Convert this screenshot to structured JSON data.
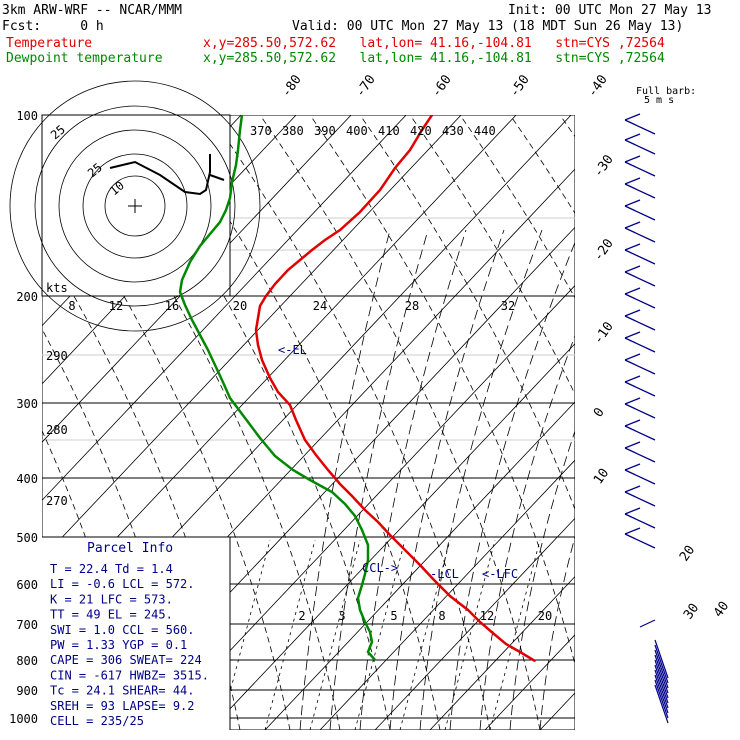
{
  "header": {
    "model": "3km ARW-WRF -- NCAR/MMM",
    "init": "Init: 00 UTC Mon 27 May 13",
    "fcst": "Fcst:     0 h",
    "valid": "Valid: 00 UTC Mon 27 May 13 (18 MDT Sun 26 May 13)"
  },
  "legend": [
    {
      "name": "Temperature",
      "loc": "x,y=285.50,572.62   lat,lon= 41.16,-104.81   stn=CYS ,72564",
      "color": "#e00000"
    },
    {
      "name": "Dewpoint temperature",
      "loc": "x,y=285.50,572.62   lat,lon= 41.16,-104.81   stn=CYS ,72564",
      "color": "#008800"
    }
  ],
  "barb_key": {
    "title": "Full barb:",
    "value": "5 m s"
  },
  "chart_data": {
    "type": "line",
    "pressure_levels": [
      "100",
      "200",
      "300",
      "400",
      "500",
      "600",
      "700",
      "800",
      "900",
      "1000"
    ],
    "skew_temp_labels": [
      "-80",
      "-70",
      "-60",
      "-50",
      "-40",
      "-30",
      "-20",
      "-10",
      "0",
      "10",
      "20",
      "30",
      "40"
    ],
    "theta_labels": [
      "370",
      "380",
      "390",
      "400",
      "410",
      "420",
      "430",
      "440"
    ],
    "mixing_ratio_labels": [
      "2",
      "3",
      "5",
      "8",
      "12",
      "20"
    ],
    "hodograph": {
      "speed_labels": [
        "8",
        "12",
        "16",
        "20",
        "24",
        "28",
        "32"
      ],
      "ring_labels": [
        "25",
        "10"
      ],
      "kts": "kts",
      "ring_top": "25"
    },
    "theta_left_labels": [
      "290",
      "280",
      "270"
    ],
    "series": [
      {
        "name": "Temperature",
        "color": "#e00000",
        "points": [
          [
            432,
            115
          ],
          [
            422,
            130
          ],
          [
            410,
            150
          ],
          [
            395,
            168
          ],
          [
            380,
            190
          ],
          [
            360,
            212
          ],
          [
            340,
            230
          ],
          [
            325,
            240
          ],
          [
            312,
            250
          ],
          [
            300,
            260
          ],
          [
            288,
            270
          ],
          [
            275,
            284
          ],
          [
            266,
            296
          ],
          [
            260,
            306
          ],
          [
            258,
            318
          ],
          [
            256,
            330
          ],
          [
            258,
            345
          ],
          [
            262,
            360
          ],
          [
            270,
            378
          ],
          [
            278,
            392
          ],
          [
            290,
            405
          ],
          [
            296,
            420
          ],
          [
            305,
            440
          ],
          [
            316,
            455
          ],
          [
            328,
            470
          ],
          [
            340,
            484
          ],
          [
            352,
            496
          ],
          [
            365,
            510
          ],
          [
            378,
            522
          ],
          [
            390,
            535
          ],
          [
            403,
            548
          ],
          [
            420,
            565
          ],
          [
            434,
            580
          ],
          [
            450,
            596
          ],
          [
            468,
            610
          ],
          [
            480,
            622
          ],
          [
            494,
            634
          ],
          [
            506,
            644
          ],
          [
            520,
            652
          ],
          [
            535,
            661
          ]
        ]
      },
      {
        "name": "Dewpoint temperature",
        "color": "#008800",
        "points": [
          [
            242,
            115
          ],
          [
            240,
            130
          ],
          [
            238,
            150
          ],
          [
            236,
            165
          ],
          [
            232,
            182
          ],
          [
            230,
            198
          ],
          [
            226,
            210
          ],
          [
            220,
            222
          ],
          [
            210,
            234
          ],
          [
            200,
            246
          ],
          [
            190,
            262
          ],
          [
            182,
            280
          ],
          [
            180,
            292
          ],
          [
            185,
            305
          ],
          [
            192,
            320
          ],
          [
            200,
            335
          ],
          [
            208,
            350
          ],
          [
            215,
            365
          ],
          [
            222,
            380
          ],
          [
            230,
            398
          ],
          [
            245,
            418
          ],
          [
            260,
            438
          ],
          [
            275,
            456
          ],
          [
            293,
            470
          ],
          [
            310,
            480
          ],
          [
            332,
            492
          ],
          [
            345,
            504
          ],
          [
            355,
            516
          ],
          [
            362,
            530
          ],
          [
            368,
            545
          ],
          [
            368,
            560
          ],
          [
            365,
            574
          ],
          [
            362,
            585
          ],
          [
            358,
            598
          ],
          [
            360,
            610
          ],
          [
            365,
            622
          ],
          [
            370,
            632
          ],
          [
            372,
            642
          ],
          [
            368,
            652
          ],
          [
            375,
            660
          ]
        ]
      }
    ],
    "labels": [
      "<-EL",
      "CCL->",
      "-LCL",
      "<-LFC"
    ]
  },
  "parcel_info": {
    "title": "Parcel Info",
    "rows": [
      "T  =   22.4  Td =   1.4",
      "LI =   -0.6  LCL =  572.",
      "K  =     21  LFC =  573.",
      "TT =     49  EL  =  245.",
      "SWI =   1.0  CCL =  560.",
      "PW =   1.33  YGP =   0.1",
      "CAPE =  306  SWEAT=  224",
      "CIN =  -617  HWBZ= 3515.",
      "Tc =   24.1  SHEAR=  44.",
      "SREH =   93  LAPSE=  9.2",
      "CELL = 235/25"
    ]
  }
}
